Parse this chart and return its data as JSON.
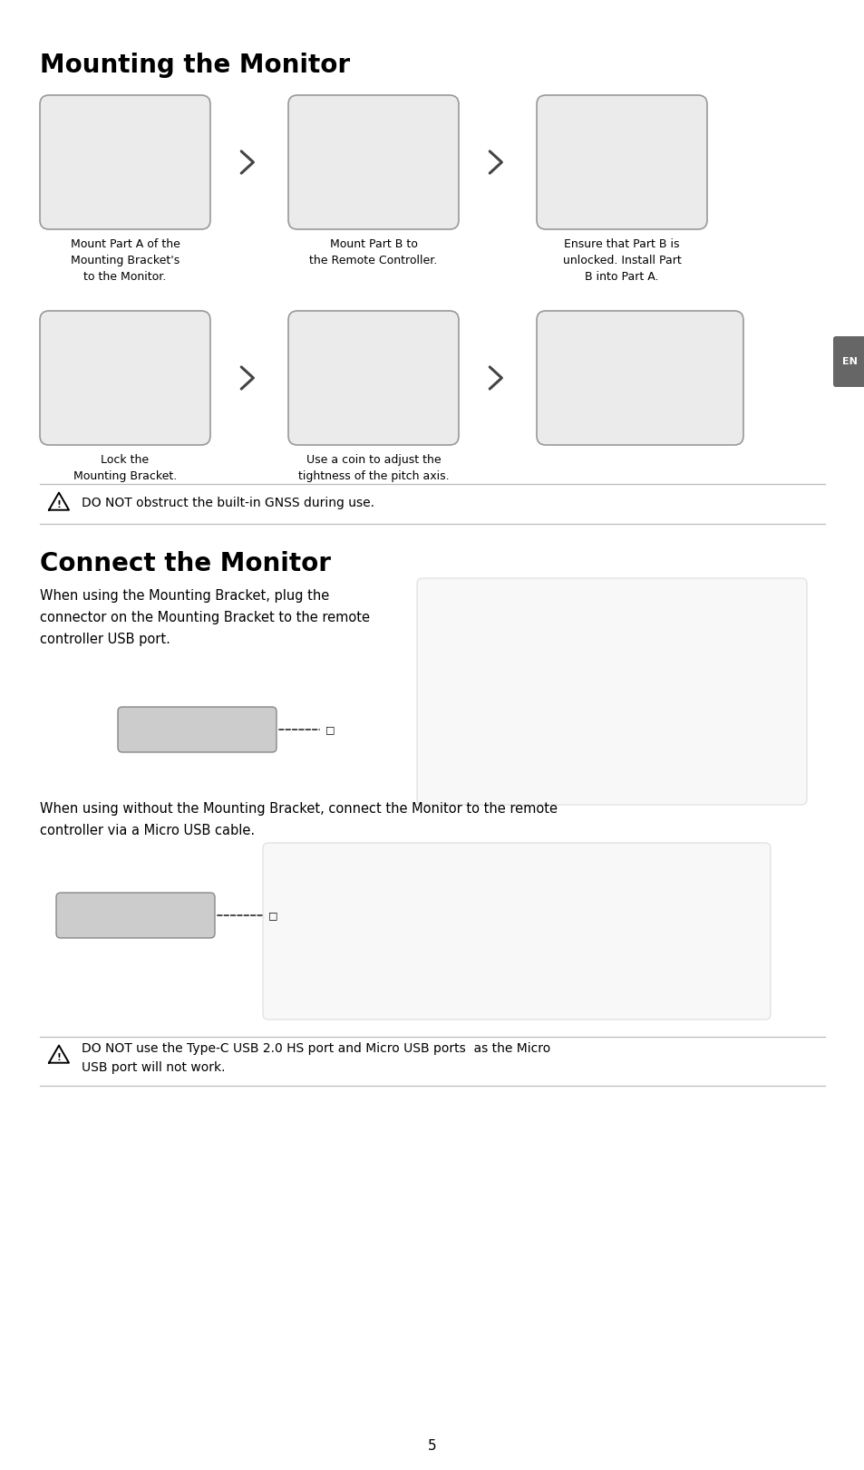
{
  "page_bg": "#ffffff",
  "title1": "Mounting the Monitor",
  "title2": "Connect the Monitor",
  "section1_captions": [
    "Mount Part A of the\nMounting Bracket's\nto the Monitor.",
    "Mount Part B to\nthe Remote Controller.",
    "Ensure that Part B is\nunlocked. Install Part\nB into Part A."
  ],
  "section1_captions2": [
    "Lock the\nMounting Bracket.",
    "Use a coin to adjust the\ntightness of the pitch axis.",
    ""
  ],
  "warning1": "DO NOT obstruct the built-in GNSS during use.",
  "connect_text1_line1": "When using the Mounting Bracket, plug the",
  "connect_text1_line2": "connector on the Mounting Bracket to the remote",
  "connect_text1_line3": "controller USB port.",
  "connect_text2": "When using without the Mounting Bracket, connect the Monitor to the remote\ncontroller via a Micro USB cable.",
  "warning2_line1": "DO NOT use the Type-C USB 2.0 HS port and Micro USB ports  as the Micro",
  "warning2_line2": "USB port will not work.",
  "page_number": "5",
  "en_tab": "EN",
  "box_edge": "#999999",
  "box_face": "#ebebeb",
  "arrow_color": "#444444",
  "warn_line_color": "#bbbbbb",
  "en_tab_color": "#666666"
}
